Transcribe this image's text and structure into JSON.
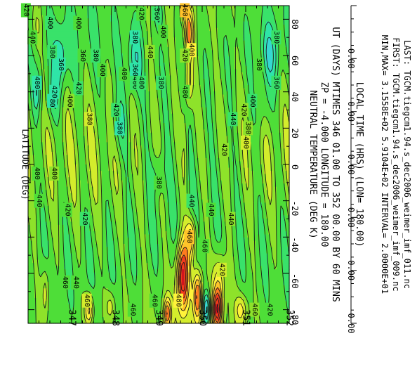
{
  "chart_data": {
    "type": "heatmap",
    "title_line1": "NEUTRAL TEMPERATURE (DEG K)",
    "title_line2": "ZP =    -4.000 LONGITUDE =   180.00",
    "xlabel": "UT (DAYS) MTIMES 346 01.00 TO 352 00.00 BY   60 MINS",
    "ylabel": "LATITUDE (DEG)",
    "ylim": [
      -87.5,
      87.5
    ],
    "x_ticks": [
      "347",
      "348",
      "349",
      "350",
      "351",
      "352"
    ],
    "lat_ticks": [
      "80",
      "60",
      "40",
      "20",
      "0",
      "-20",
      "-40",
      "-60",
      "-80"
    ],
    "local_time_label": "LOCAL TIME (HRS) (LON= 180.00)",
    "local_time_ticks": [
      "0.00",
      "0.00",
      "0.00",
      "0.00",
      "0.00",
      "0.00"
    ],
    "minmax_line": "MIN,MAX=  3.1558E+02  5.9104E+02 INTERVAL=  2.0000E+01",
    "first_line": "FIRST: TGCM.tiegcm1.94.s_dec2006_weimer_imf_009.nc",
    "last_line": "LAST:  TGCM.tiegcm1.94.s_dec2006_weimer_imf_011.nc",
    "contour_labels": [
      {
        "text": "360",
        "x": 348.45,
        "y": 52
      },
      {
        "text": "380",
        "x": 348.45,
        "y": 70
      },
      {
        "text": "400",
        "x": 348.45,
        "y": 45
      },
      {
        "text": "360",
        "x": 347.25,
        "y": 60
      },
      {
        "text": "380",
        "x": 347.55,
        "y": 60
      },
      {
        "text": "400",
        "x": 347.15,
        "y": 78
      },
      {
        "text": "420",
        "x": 348.6,
        "y": 83
      },
      {
        "text": "380",
        "x": 348.1,
        "y": 20
      },
      {
        "text": "420",
        "x": 347.15,
        "y": 42
      },
      {
        "text": "380",
        "x": 347.4,
        "y": 25
      },
      {
        "text": "400",
        "x": 346.95,
        "y": 35
      },
      {
        "text": "440",
        "x": 348.8,
        "y": 62
      },
      {
        "text": "400",
        "x": 348.2,
        "y": 50
      },
      {
        "text": "420",
        "x": 348.02,
        "y": 30
      },
      {
        "text": "400",
        "x": 347.7,
        "y": 52
      },
      {
        "text": "380",
        "x": 346.55,
        "y": 62
      },
      {
        "text": "400",
        "x": 346.5,
        "y": 78
      },
      {
        "text": "400",
        "x": 346.2,
        "y": 45
      },
      {
        "text": "420",
        "x": 345.95,
        "y": 85
      },
      {
        "text": "440",
        "x": 346.1,
        "y": 70
      },
      {
        "text": "380",
        "x": 346.55,
        "y": 35
      },
      {
        "text": "360",
        "x": 346.75,
        "y": 55
      },
      {
        "text": "420",
        "x": 346.6,
        "y": 40
      },
      {
        "text": "380",
        "x": 349.0,
        "y": -10
      },
      {
        "text": "400",
        "x": 346.2,
        "y": -5
      },
      {
        "text": "440",
        "x": 346.25,
        "y": -20
      },
      {
        "text": "400",
        "x": 346.6,
        "y": -5
      },
      {
        "text": "420",
        "x": 346.9,
        "y": -25
      },
      {
        "text": "440",
        "x": 347.1,
        "y": -65
      },
      {
        "text": "460",
        "x": 347.35,
        "y": -75
      },
      {
        "text": "460",
        "x": 346.85,
        "y": -65
      },
      {
        "text": "460",
        "x": 348.9,
        "y": -75
      },
      {
        "text": "480",
        "x": 349.45,
        "y": -75
      },
      {
        "text": "440",
        "x": 349.75,
        "y": -20
      },
      {
        "text": "460",
        "x": 349.7,
        "y": -40
      },
      {
        "text": "420",
        "x": 350.45,
        "y": -58
      },
      {
        "text": "460",
        "x": 350.05,
        "y": -45
      },
      {
        "text": "440",
        "x": 350.2,
        "y": -25
      },
      {
        "text": "420",
        "x": 350.5,
        "y": 8
      },
      {
        "text": "400",
        "x": 351.0,
        "y": 12
      },
      {
        "text": "380",
        "x": 351.3,
        "y": 55
      },
      {
        "text": "360",
        "x": 351.7,
        "y": 45
      },
      {
        "text": "380",
        "x": 351.7,
        "y": 70
      },
      {
        "text": "420",
        "x": 351.55,
        "y": -80
      },
      {
        "text": "460",
        "x": 351.2,
        "y": -80
      },
      {
        "text": "400",
        "x": 349.75,
        "y": 63
      },
      {
        "text": "480",
        "x": 349.6,
        "y": 40
      },
      {
        "text": "460",
        "x": 349.6,
        "y": 85
      },
      {
        "text": "420",
        "x": 349.6,
        "y": 60
      },
      {
        "text": "400",
        "x": 349.1,
        "y": 73
      },
      {
        "text": "360",
        "x": 348.95,
        "y": 83
      },
      {
        "text": "400",
        "x": 348.6,
        "y": 45
      },
      {
        "text": "460",
        "x": 348.4,
        "y": -80
      },
      {
        "text": "380",
        "x": 349.05,
        "y": 45
      },
      {
        "text": "400",
        "x": 351.15,
        "y": 35
      },
      {
        "text": "420",
        "x": 350.95,
        "y": 30
      },
      {
        "text": "420",
        "x": 347.3,
        "y": -30
      },
      {
        "text": "440",
        "x": 350.7,
        "y": 25
      },
      {
        "text": "380",
        "x": 351.05,
        "y": 20
      },
      {
        "text": "440",
        "x": 350.65,
        "y": -30
      }
    ],
    "features": [
      {
        "x": 349.55,
        "y": -62,
        "sx": 0.1,
        "sy": 14,
        "amp": 150
      },
      {
        "x": 349.75,
        "y": -40,
        "sx": 0.08,
        "sy": 8,
        "amp": 80
      },
      {
        "x": 349.9,
        "y": -72,
        "sx": 0.07,
        "sy": 10,
        "amp": 110
      },
      {
        "x": 350.35,
        "y": -80,
        "sx": 0.08,
        "sy": 8,
        "amp": 130
      },
      {
        "x": 350.1,
        "y": -80,
        "sx": 0.06,
        "sy": 7,
        "amp": -90
      },
      {
        "x": 350.4,
        "y": -62,
        "sx": 0.1,
        "sy": 10,
        "amp": 60
      },
      {
        "x": 349.2,
        "y": -82,
        "sx": 0.06,
        "sy": 6,
        "amp": 90
      },
      {
        "x": 349.7,
        "y": 72,
        "sx": 0.07,
        "sy": 9,
        "amp": 95
      },
      {
        "x": 349.7,
        "y": 45,
        "sx": 0.06,
        "sy": 10,
        "amp": 55
      },
      {
        "x": 349.6,
        "y": 84,
        "sx": 0.06,
        "sy": 5,
        "amp": 50
      },
      {
        "x": 348.45,
        "y": 58,
        "sx": 0.12,
        "sy": 12,
        "amp": -45
      },
      {
        "x": 348.1,
        "y": 22,
        "sx": 0.14,
        "sy": 12,
        "amp": -35
      },
      {
        "x": 346.75,
        "y": 58,
        "sx": 0.12,
        "sy": 12,
        "amp": -45
      },
      {
        "x": 346.55,
        "y": 36,
        "sx": 0.12,
        "sy": 10,
        "amp": -30
      },
      {
        "x": 351.55,
        "y": 60,
        "sx": 0.14,
        "sy": 12,
        "amp": -45
      },
      {
        "x": 351.4,
        "y": 30,
        "sx": 0.12,
        "sy": 10,
        "amp": -25
      },
      {
        "x": 349.0,
        "y": 83,
        "sx": 0.06,
        "sy": 5,
        "amp": -40
      },
      {
        "x": 349.0,
        "y": -5,
        "sx": 0.1,
        "sy": 8,
        "amp": -30
      },
      {
        "x": 347.4,
        "y": -80,
        "sx": 0.07,
        "sy": 6,
        "amp": 80
      },
      {
        "x": 346.4,
        "y": -70,
        "sx": 0.06,
        "sy": 10,
        "amp": 45
      },
      {
        "x": 346.2,
        "y": 76,
        "sx": 0.08,
        "sy": 8,
        "amp": 30
      },
      {
        "x": 346.2,
        "y": 40,
        "sx": 0.06,
        "sy": 8,
        "amp": -45
      },
      {
        "x": 349.6,
        "y": 10,
        "sx": 0.05,
        "sy": 20,
        "amp": 25
      },
      {
        "x": 350.9,
        "y": -80,
        "sx": 0.1,
        "sy": 6,
        "amp": 55
      },
      {
        "x": 347.9,
        "y": -78,
        "sx": 0.08,
        "sy": 6,
        "amp": 40
      }
    ],
    "color_levels": [
      {
        "min": 0,
        "max": 340,
        "color": "#5fbdf5"
      },
      {
        "min": 340,
        "max": 360,
        "color": "#37d7d2"
      },
      {
        "min": 360,
        "max": 380,
        "color": "#2fe4a8"
      },
      {
        "min": 380,
        "max": 400,
        "color": "#39e26a"
      },
      {
        "min": 400,
        "max": 420,
        "color": "#4ede38"
      },
      {
        "min": 420,
        "max": 440,
        "color": "#8ee22a"
      },
      {
        "min": 440,
        "max": 460,
        "color": "#d4ec2c"
      },
      {
        "min": 460,
        "max": 480,
        "color": "#fff23a"
      },
      {
        "min": 480,
        "max": 500,
        "color": "#ffc32a"
      },
      {
        "min": 500,
        "max": 520,
        "color": "#ff7b1f"
      },
      {
        "min": 520,
        "max": 550,
        "color": "#f23a1c"
      },
      {
        "min": 550,
        "max": 580,
        "color": "#d0141f"
      },
      {
        "min": 580,
        "max": 700,
        "color": "#c425c8"
      }
    ]
  }
}
